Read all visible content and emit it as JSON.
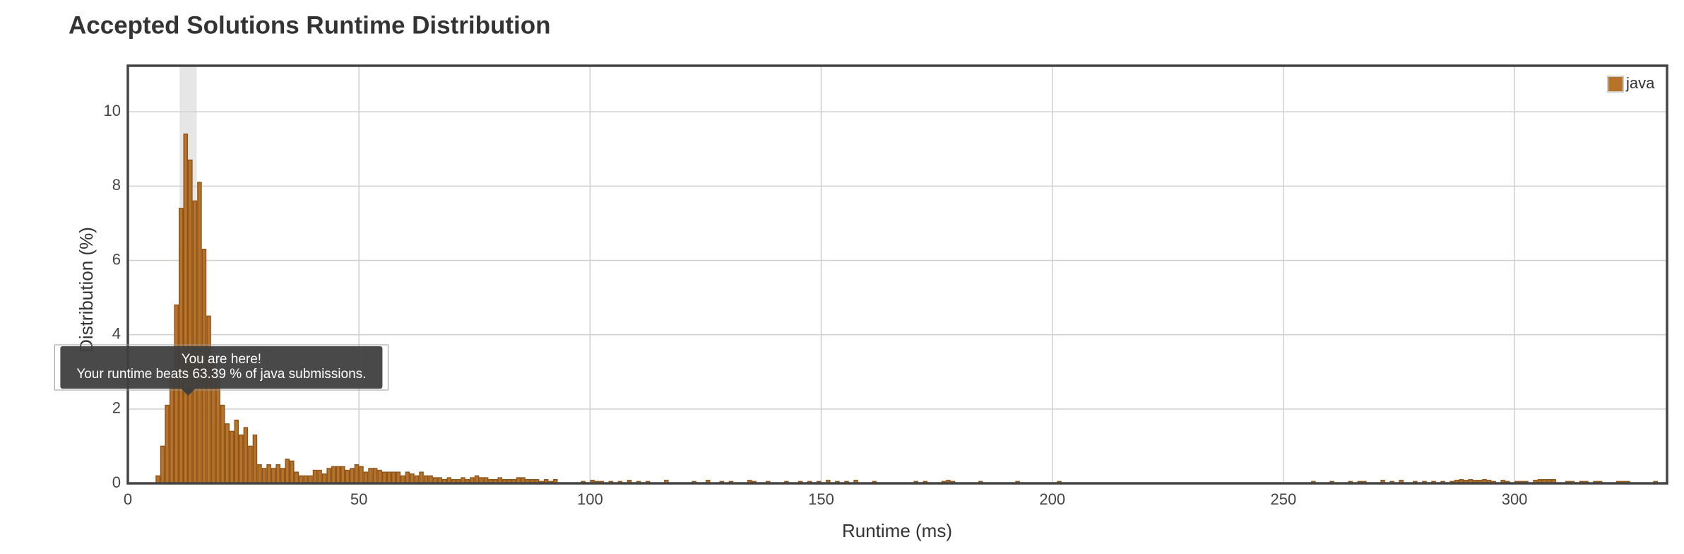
{
  "chart_data": {
    "type": "bar",
    "title": "Accepted Solutions Runtime Distribution",
    "xlabel": "Runtime (ms)",
    "ylabel": "Distribution (%)",
    "series": [
      {
        "name": "java",
        "color": "#b8732b",
        "x": [
          6,
          7,
          8,
          9,
          10,
          11,
          12,
          13,
          14,
          15,
          16,
          17,
          18,
          19,
          20,
          21,
          22,
          23,
          24,
          25,
          26,
          27,
          28,
          29,
          30,
          31,
          32,
          33,
          34,
          35,
          36,
          37,
          38,
          39,
          40,
          41,
          42,
          43,
          44,
          45,
          46,
          47,
          48,
          49,
          50,
          51,
          52,
          53,
          54,
          55,
          56,
          57,
          58,
          59,
          60,
          61,
          62,
          63,
          64,
          65,
          66,
          67,
          68,
          69,
          70,
          71,
          72,
          73,
          74,
          75,
          76,
          77,
          78,
          79,
          80,
          81,
          82,
          83,
          84,
          85,
          86,
          87,
          88,
          89,
          90,
          91,
          92,
          98,
          100,
          101,
          102,
          104,
          106,
          108,
          110,
          112,
          116,
          122,
          125,
          128,
          130,
          134,
          135,
          138,
          142,
          145,
          147,
          149,
          151,
          153,
          155,
          157,
          161,
          170,
          172,
          176,
          177,
          178,
          184,
          192,
          201,
          256,
          260,
          264,
          266,
          267,
          271,
          273,
          275,
          278,
          280,
          282,
          284,
          286,
          287,
          288,
          289,
          290,
          291,
          292,
          293,
          294,
          295,
          297,
          298,
          300,
          301,
          302,
          304,
          305,
          306,
          307,
          308,
          311,
          312,
          314,
          315,
          317,
          318,
          322,
          323,
          324,
          330
        ],
        "values": [
          0.2,
          1.0,
          2.1,
          2.8,
          4.8,
          7.4,
          9.4,
          8.7,
          7.6,
          8.1,
          6.3,
          4.5,
          3.3,
          2.8,
          2.1,
          1.6,
          1.4,
          1.7,
          1.3,
          1.5,
          1.0,
          1.3,
          0.5,
          0.4,
          0.5,
          0.4,
          0.5,
          0.4,
          0.65,
          0.6,
          0.3,
          0.2,
          0.2,
          0.2,
          0.35,
          0.35,
          0.25,
          0.4,
          0.45,
          0.45,
          0.45,
          0.35,
          0.4,
          0.5,
          0.45,
          0.3,
          0.4,
          0.4,
          0.35,
          0.3,
          0.3,
          0.3,
          0.3,
          0.2,
          0.3,
          0.25,
          0.2,
          0.3,
          0.2,
          0.2,
          0.15,
          0.15,
          0.1,
          0.15,
          0.1,
          0.1,
          0.15,
          0.1,
          0.15,
          0.2,
          0.15,
          0.15,
          0.1,
          0.1,
          0.15,
          0.1,
          0.1,
          0.1,
          0.15,
          0.15,
          0.1,
          0.1,
          0.1,
          0.05,
          0.1,
          0.05,
          0.1,
          0.05,
          0.08,
          0.05,
          0.05,
          0.05,
          0.05,
          0.08,
          0.05,
          0.05,
          0.08,
          0.05,
          0.08,
          0.05,
          0.05,
          0.08,
          0.05,
          0.05,
          0.05,
          0.05,
          0.05,
          0.05,
          0.08,
          0.05,
          0.05,
          0.08,
          0.05,
          0.05,
          0.05,
          0.05,
          0.08,
          0.05,
          0.05,
          0.05,
          0.05,
          0.05,
          0.05,
          0.05,
          0.05,
          0.05,
          0.08,
          0.05,
          0.08,
          0.05,
          0.05,
          0.05,
          0.05,
          0.05,
          0.08,
          0.1,
          0.08,
          0.1,
          0.08,
          0.08,
          0.1,
          0.08,
          0.05,
          0.08,
          0.05,
          0.05,
          0.05,
          0.05,
          0.08,
          0.1,
          0.1,
          0.1,
          0.1,
          0.05,
          0.05,
          0.05,
          0.05,
          0.05,
          0.05,
          0.05,
          0.05,
          0.05,
          0.05
        ]
      }
    ],
    "xlim": [
      0,
      333
    ],
    "ylim": [
      0,
      11.24
    ],
    "xticks": [
      0,
      50,
      100,
      150,
      200,
      250,
      300
    ],
    "yticks": [
      0,
      2,
      4,
      6,
      8,
      10
    ],
    "grid": true,
    "legend": "upper right",
    "annotation": {
      "x": [
        11.2,
        14.9
      ],
      "lines": [
        "You are here!",
        "Your runtime beats 63.39 % of java submissions."
      ]
    }
  }
}
